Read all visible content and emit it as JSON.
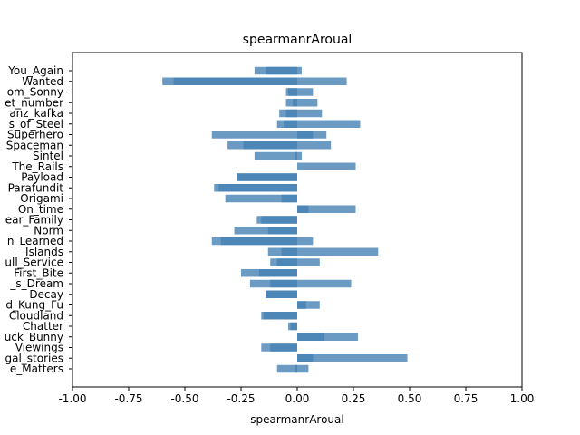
{
  "chart_data": {
    "type": "bar",
    "orientation": "horizontal",
    "title": "spearmanrAroual",
    "xlabel": "spearmanrAroual",
    "ylabel": "",
    "xlim": [
      -1.0,
      1.0
    ],
    "xticks": [
      "-1.00",
      "-0.75",
      "-0.50",
      "-0.25",
      "0.00",
      "0.25",
      "0.50",
      "0.75",
      "1.00"
    ],
    "grid": false,
    "bar_color": "#4682b4",
    "categories": [
      "You_Again",
      "Wanted",
      "om_Sonny",
      "et_number",
      "anz_kafka",
      "s_of_Steel",
      "Superhero",
      "Spaceman",
      "Sintel",
      "The_Rails",
      "Payload",
      "Parafundit",
      "Origami",
      "On_time",
      "ear_Family",
      "Norm",
      "n_Learned",
      "Islands",
      "ull_Service",
      "First_Bite",
      "_s_Dream",
      "Decay",
      "d_Kung_Fu",
      "Cloudland",
      "Chatter",
      "uck_Bunny",
      "Viewings",
      "gal_stories",
      "e_Matters"
    ],
    "series": [
      {
        "values": [
          -0.19,
          -0.6,
          -0.05,
          -0.05,
          -0.08,
          -0.09,
          -0.38,
          -0.31,
          -0.19,
          0.0,
          -0.27,
          -0.37,
          -0.32,
          0.0,
          -0.18,
          -0.28,
          -0.38,
          -0.13,
          -0.12,
          -0.25,
          -0.21,
          -0.14,
          0.0,
          -0.16,
          -0.04,
          0.0,
          -0.16,
          0.0,
          -0.09
        ]
      },
      {
        "values": [
          0.02,
          0.22,
          0.07,
          0.09,
          0.11,
          0.28,
          0.13,
          0.15,
          0.02,
          0.26,
          0.0,
          0.0,
          0.0,
          0.26,
          0.0,
          0.0,
          0.07,
          0.36,
          0.1,
          0.0,
          0.24,
          0.0,
          0.1,
          0.0,
          0.0,
          0.27,
          0.0,
          0.49,
          0.05
        ]
      },
      {
        "values": [
          -0.14,
          -0.55,
          -0.04,
          -0.02,
          -0.05,
          -0.06,
          0.07,
          -0.24,
          -0.01,
          0.0,
          -0.27,
          -0.35,
          -0.07,
          0.05,
          -0.16,
          -0.13,
          -0.34,
          -0.07,
          -0.09,
          -0.17,
          -0.12,
          -0.14,
          0.04,
          -0.15,
          -0.03,
          0.12,
          -0.12,
          0.07,
          -0.01
        ]
      }
    ]
  }
}
